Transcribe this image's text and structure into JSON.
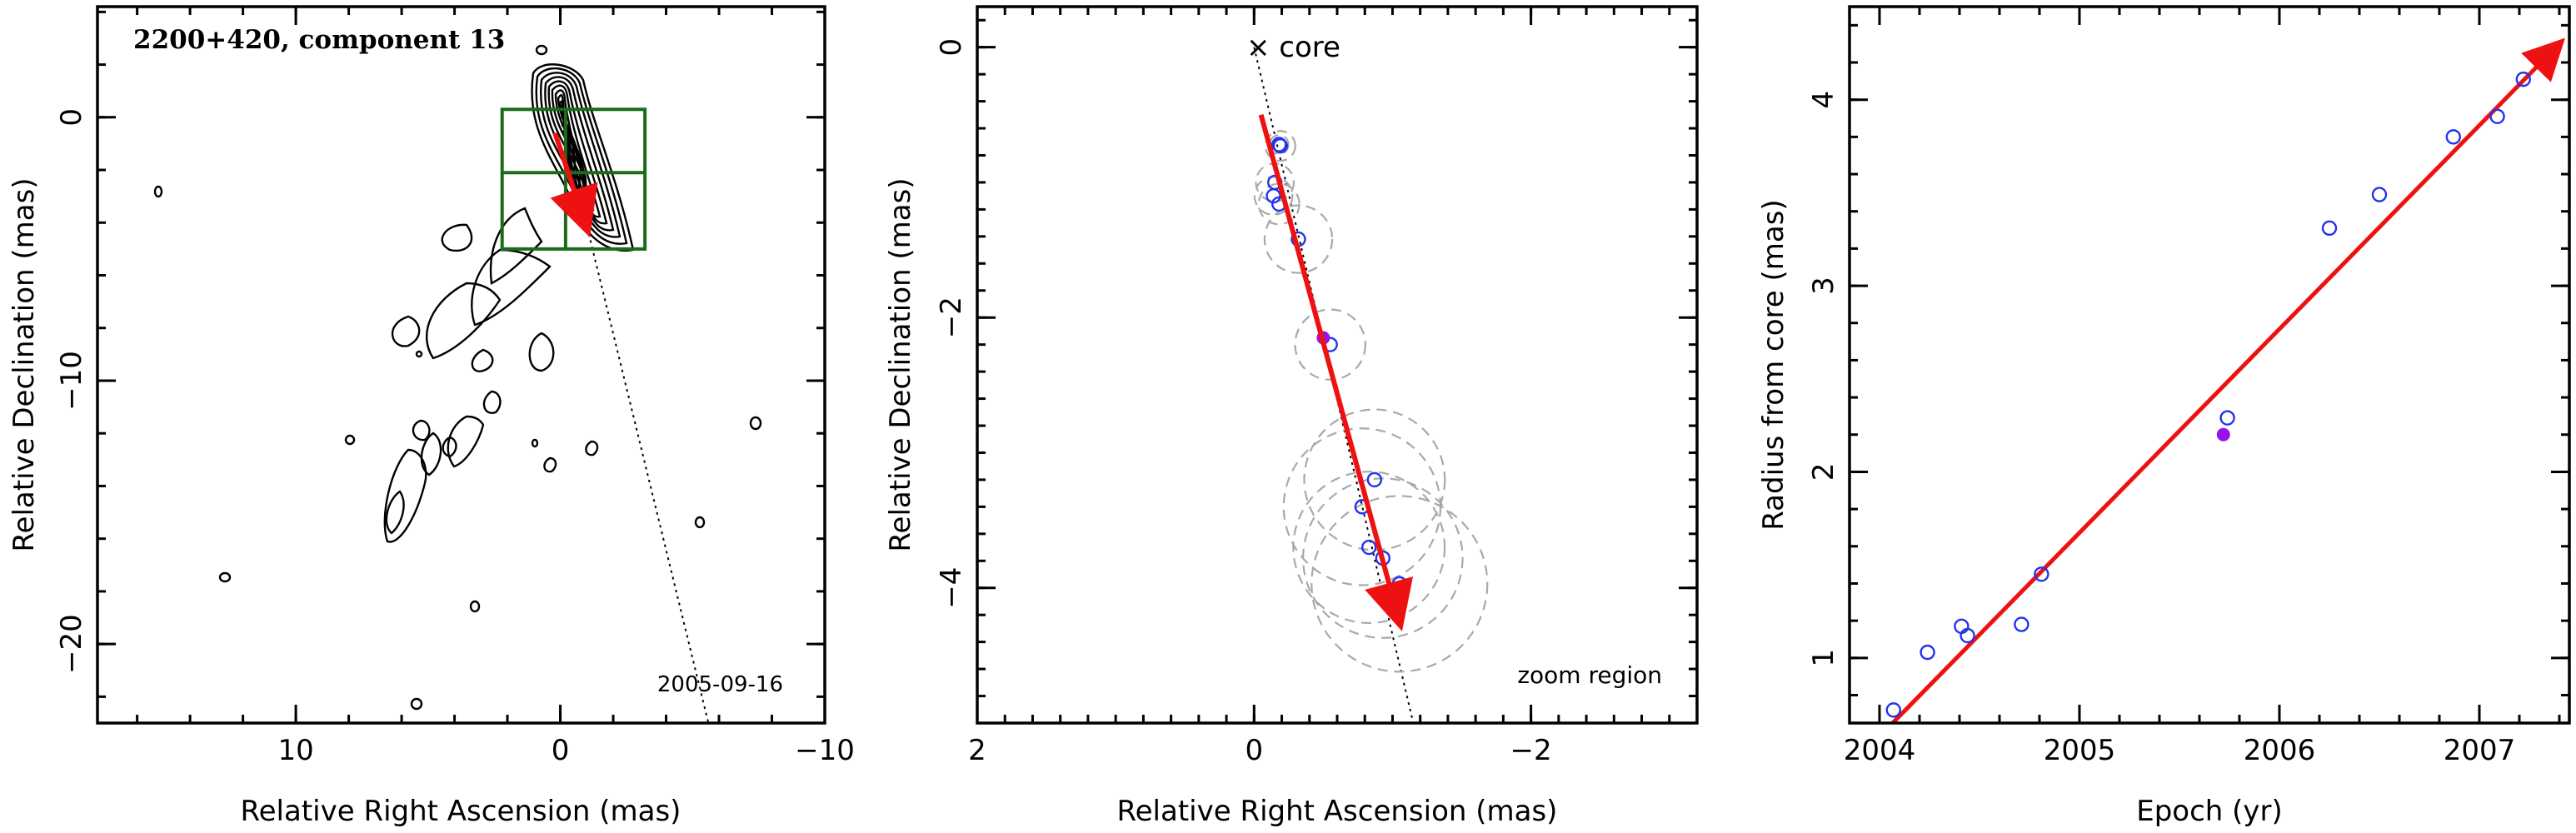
{
  "colors": {
    "arrow": "#ee1111",
    "point_open": "#2233ee",
    "point_filled": "#9911ee",
    "box": "#1a6b1a",
    "fit_circle": "#a9a9a9"
  },
  "chart_data": [
    {
      "type": "contour",
      "title": "2200+420, component 13",
      "epoch_label": "2005-09-16",
      "xlabel": "Relative Right Ascension (mas)",
      "ylabel": "Relative Declination (mas)",
      "xlim": [
        17.5,
        -10
      ],
      "ylim": [
        -23,
        4.2
      ],
      "x_ticks": [
        10,
        0,
        -10
      ],
      "y_ticks": [
        0,
        -10,
        -20
      ],
      "box": {
        "x": [
          2.2,
          -3.2
        ],
        "y": [
          0.3,
          -5.0
        ],
        "dividers": {
          "x": -0.2,
          "y": -2.1
        }
      },
      "arrow": {
        "from": [
          0.2,
          -0.6
        ],
        "to": [
          -1.0,
          -4.2
        ]
      },
      "dotted_line": {
        "from": [
          0,
          0
        ],
        "to": [
          -5.6,
          -23
        ]
      }
    },
    {
      "type": "scatter",
      "xlabel": "Relative Right Ascension (mas)",
      "ylabel": "Relative Declination (mas)",
      "xlim": [
        2,
        -3.2
      ],
      "ylim": [
        -5.0,
        0.3
      ],
      "x_ticks": [
        2,
        0,
        -2
      ],
      "y_ticks": [
        0,
        -2,
        -4
      ],
      "core_label": "× core",
      "zoom_label": "zoom region",
      "points": [
        {
          "x": -0.18,
          "y": -0.72,
          "r": 0.07
        },
        {
          "x": -0.19,
          "y": -0.73,
          "r": 0.11
        },
        {
          "x": -0.14,
          "y": -1.1,
          "r": 0.14
        },
        {
          "x": -0.18,
          "y": -1.16,
          "r": 0.15
        },
        {
          "x": -0.15,
          "y": -1.0,
          "r": 0.14
        },
        {
          "x": -0.32,
          "y": -1.42,
          "r": 0.25
        },
        {
          "x": -0.55,
          "y": -2.2,
          "r": 0.26
        },
        {
          "x": -0.87,
          "y": -3.2,
          "r": 0.52
        },
        {
          "x": -0.78,
          "y": -3.4,
          "r": 0.58
        },
        {
          "x": -0.83,
          "y": -3.7,
          "r": 0.56
        },
        {
          "x": -0.93,
          "y": -3.78,
          "r": 0.59
        },
        {
          "x": -1.05,
          "y": -3.97,
          "r": 0.65
        }
      ],
      "filled_point": {
        "x": -0.5,
        "y": -2.15
      },
      "arrow": {
        "from": [
          -0.05,
          -0.5
        ],
        "to": [
          -1.05,
          -4.25
        ]
      },
      "dotted_line": {
        "from": [
          0,
          0
        ],
        "to": [
          -1.15,
          -5.0
        ]
      }
    },
    {
      "type": "scatter",
      "xlabel": "Epoch (yr)",
      "ylabel": "Radius from core (mas)",
      "xlim": [
        2003.85,
        2007.45
      ],
      "ylim": [
        0.65,
        4.5
      ],
      "x_ticks": [
        2004,
        2005,
        2006,
        2007
      ],
      "y_ticks": [
        1,
        2,
        3,
        4
      ],
      "points": [
        {
          "x": 2004.07,
          "y": 0.72
        },
        {
          "x": 2004.24,
          "y": 1.03
        },
        {
          "x": 2004.41,
          "y": 1.17
        },
        {
          "x": 2004.44,
          "y": 1.12
        },
        {
          "x": 2004.71,
          "y": 1.18
        },
        {
          "x": 2004.81,
          "y": 1.45
        },
        {
          "x": 2005.74,
          "y": 2.29
        },
        {
          "x": 2006.25,
          "y": 3.31
        },
        {
          "x": 2006.5,
          "y": 3.49
        },
        {
          "x": 2006.87,
          "y": 3.8
        },
        {
          "x": 2007.09,
          "y": 3.91
        },
        {
          "x": 2007.22,
          "y": 4.11
        }
      ],
      "filled_point": {
        "x": 2005.72,
        "y": 2.2
      },
      "fit_arrow": {
        "from": [
          2004.02,
          0.6
        ],
        "to": [
          2007.4,
          4.3
        ]
      }
    }
  ]
}
